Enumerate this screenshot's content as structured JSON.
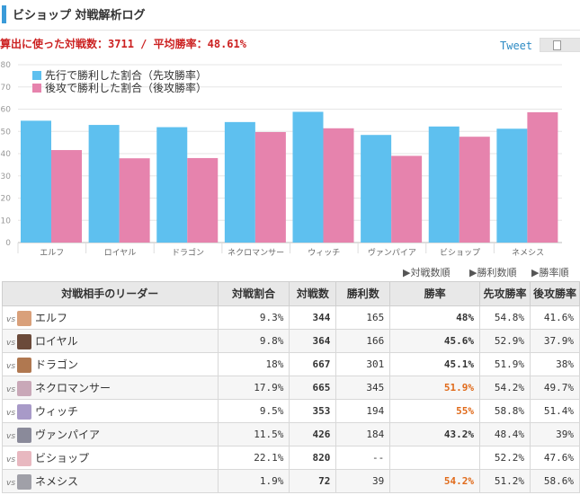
{
  "header": {
    "title": "ビショップ 対戦解析ログ"
  },
  "summary": {
    "total_label": "算出に使った対戦数：",
    "total_value": "3711",
    "separator": " / ",
    "avg_label": "平均勝率：",
    "avg_value": "48.61%"
  },
  "social": {
    "tweet": "Tweet"
  },
  "colors": {
    "first": "#5ec0ef",
    "second": "#e683ad",
    "orange": "#e06a1a"
  },
  "chart_data": {
    "type": "bar",
    "categories": [
      "エルフ",
      "ロイヤル",
      "ドラゴン",
      "ネクロマンサー",
      "ウィッチ",
      "ヴァンパイア",
      "ビショップ",
      "ネメシス"
    ],
    "series": [
      {
        "name": "先行で勝利した割合（先攻勝率）",
        "values": [
          54.8,
          52.9,
          51.9,
          54.2,
          58.8,
          48.4,
          52.2,
          51.2
        ]
      },
      {
        "name": "後攻で勝利した割合（後攻勝率）",
        "values": [
          41.6,
          37.9,
          38,
          49.7,
          51.4,
          39,
          47.6,
          58.6
        ]
      }
    ],
    "y_ticks": [
      "0",
      "10",
      "20",
      "30",
      "40",
      "50",
      "60",
      "70",
      "80"
    ],
    "ylim": [
      0,
      80
    ],
    "grid": true,
    "legend": "top-left"
  },
  "sort_links": [
    "▶対戦数順",
    "▶勝利数順",
    "▶勝率順"
  ],
  "table": {
    "headers": [
      "対戦相手のリーダー",
      "対戦割合",
      "対戦数",
      "勝利数",
      "勝率",
      "先攻勝率",
      "後攻勝率"
    ],
    "vs": "vs",
    "rows": [
      {
        "leader": "エルフ",
        "share": "9.3%",
        "games": "344",
        "wins": "165",
        "rate": "48%",
        "first": "54.8%",
        "second": "41.6%",
        "avatar": "#d9a07a",
        "high": false
      },
      {
        "leader": "ロイヤル",
        "share": "9.8%",
        "games": "364",
        "wins": "166",
        "rate": "45.6%",
        "first": "52.9%",
        "second": "37.9%",
        "avatar": "#6b4a3a",
        "high": false
      },
      {
        "leader": "ドラゴン",
        "share": "18%",
        "games": "667",
        "wins": "301",
        "rate": "45.1%",
        "first": "51.9%",
        "second": "38%",
        "avatar": "#b07850",
        "high": false
      },
      {
        "leader": "ネクロマンサー",
        "share": "17.9%",
        "games": "665",
        "wins": "345",
        "rate": "51.9%",
        "first": "54.2%",
        "second": "49.7%",
        "avatar": "#c9a8b8",
        "high": true
      },
      {
        "leader": "ウィッチ",
        "share": "9.5%",
        "games": "353",
        "wins": "194",
        "rate": "55%",
        "first": "58.8%",
        "second": "51.4%",
        "avatar": "#a89ac8",
        "high": true
      },
      {
        "leader": "ヴァンパイア",
        "share": "11.5%",
        "games": "426",
        "wins": "184",
        "rate": "43.2%",
        "first": "48.4%",
        "second": "39%",
        "avatar": "#8a8a9a",
        "high": false
      },
      {
        "leader": "ビショップ",
        "share": "22.1%",
        "games": "820",
        "wins": "--",
        "rate": "",
        "first": "52.2%",
        "second": "47.6%",
        "avatar": "#e8b8c0",
        "high": false
      },
      {
        "leader": "ネメシス",
        "share": "1.9%",
        "games": "72",
        "wins": "39",
        "rate": "54.2%",
        "first": "51.2%",
        "second": "58.6%",
        "avatar": "#a0a0a8",
        "high": true
      }
    ]
  }
}
